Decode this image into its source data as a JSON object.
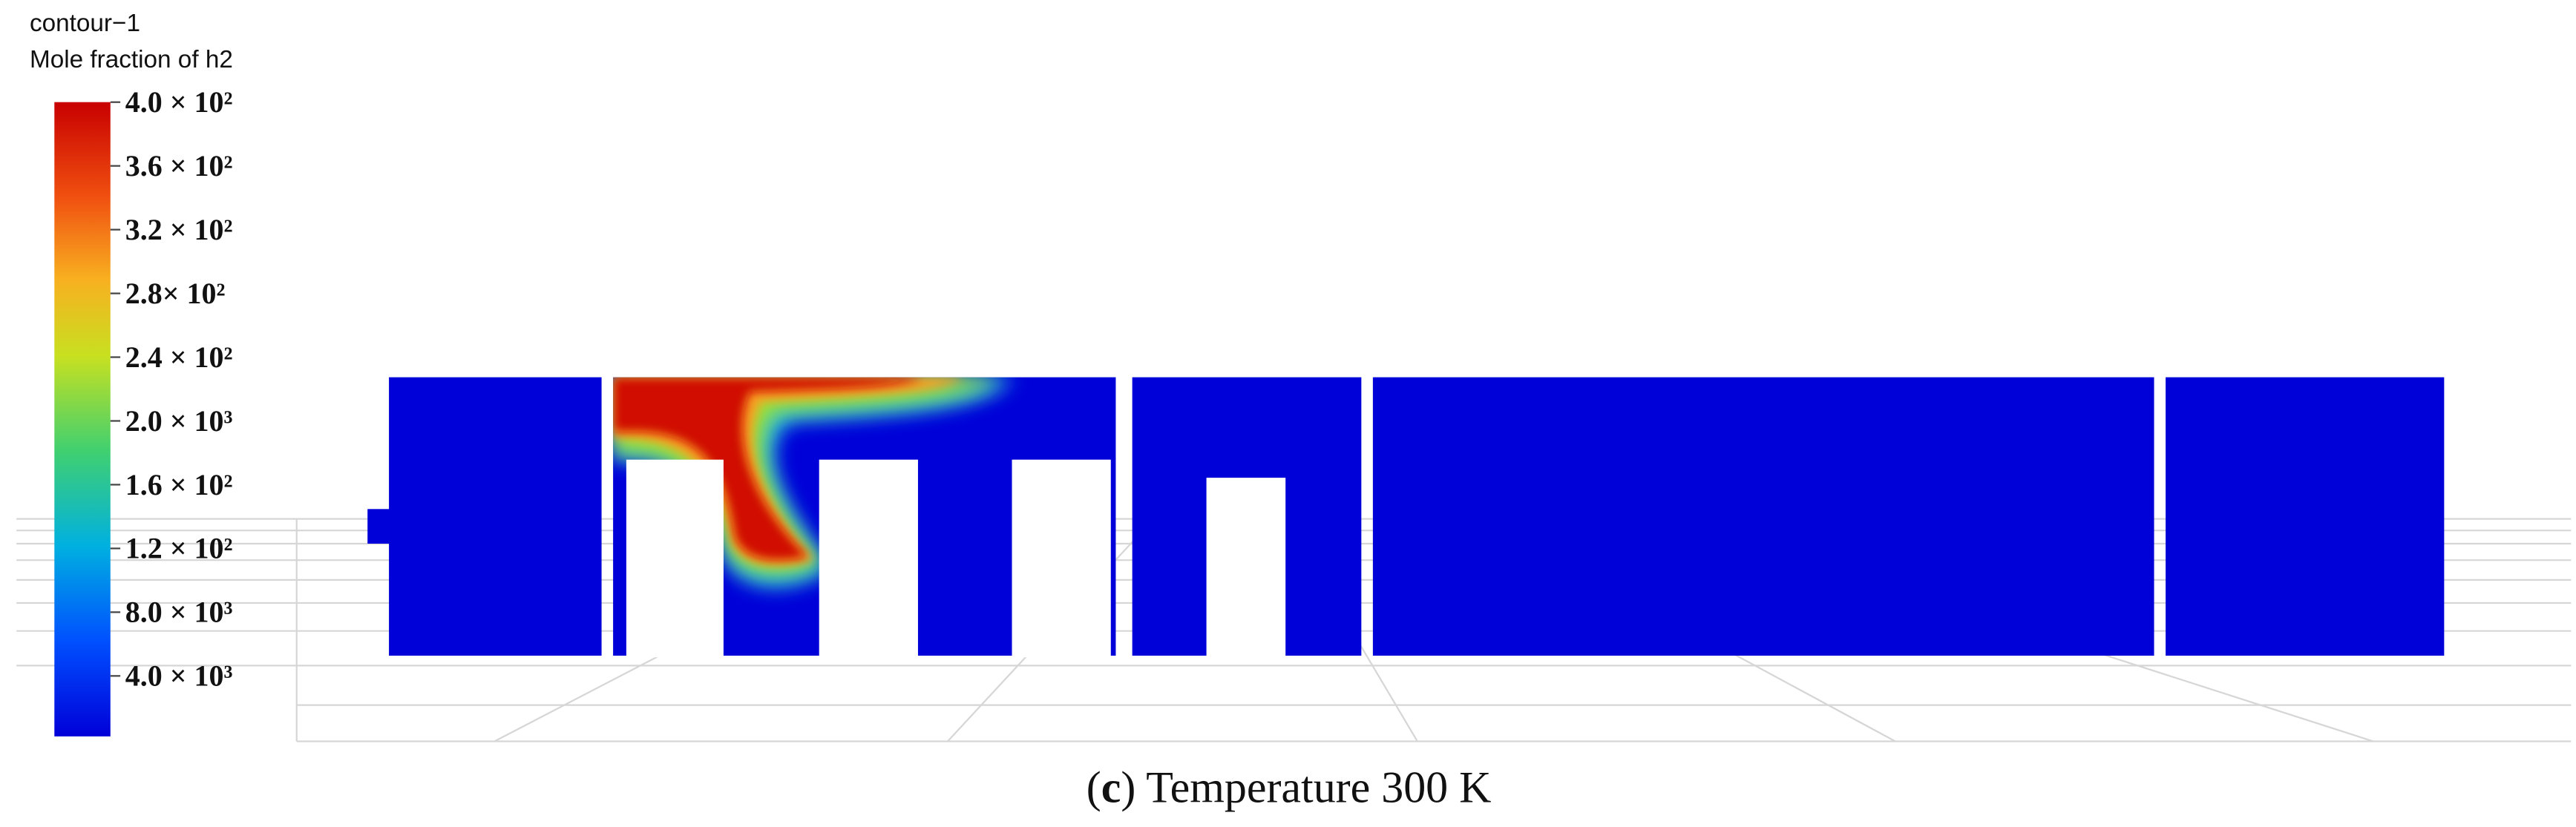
{
  "legend": {
    "title": "contour−1",
    "subtitle": "Mole fraction of h2",
    "ticks": [
      "4.0 × 10²",
      "3.6 × 10²",
      "3.2 × 10²",
      "2.8× 10²",
      "2.4 × 10²",
      "2.0 × 10³",
      "1.6 × 10²",
      "1.2 × 10²",
      "8.0 × 10³",
      "4.0 × 10³"
    ]
  },
  "caption": {
    "open": "(",
    "label": "c",
    "text": ") Temperature 300 K"
  }
}
